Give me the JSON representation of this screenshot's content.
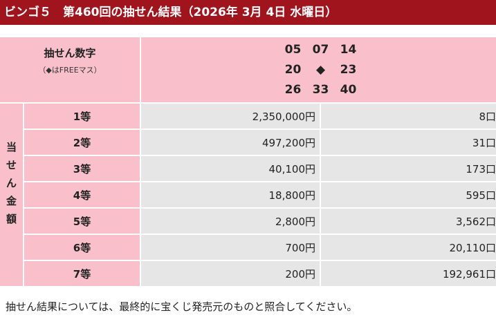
{
  "header": {
    "title": "ビンゴ５　第460回の抽せん結果（2026年 3月 4日 水曜日）"
  },
  "draw": {
    "label": "抽せん数字",
    "note": "（◆はFREEマス）",
    "rows": [
      [
        "05",
        "07",
        "14"
      ],
      [
        "20",
        "◆",
        "23"
      ],
      [
        "26",
        "33",
        "40"
      ]
    ]
  },
  "payout": {
    "side_label": [
      "当",
      "せ",
      "ん",
      "金",
      "額"
    ],
    "rows": [
      {
        "rank": "1等",
        "prize": "2,350,000円",
        "count": "8口"
      },
      {
        "rank": "2等",
        "prize": "497,200円",
        "count": "31口"
      },
      {
        "rank": "3等",
        "prize": "40,100円",
        "count": "173口"
      },
      {
        "rank": "4等",
        "prize": "18,800円",
        "count": "595口"
      },
      {
        "rank": "5等",
        "prize": "2,800円",
        "count": "3,562口"
      },
      {
        "rank": "6等",
        "prize": "700円",
        "count": "20,110口"
      },
      {
        "rank": "7等",
        "prize": "200円",
        "count": "192,961口"
      }
    ]
  },
  "footer": {
    "text": "抽せん結果については、最終的に宝くじ発売元のものと照合してください。"
  }
}
